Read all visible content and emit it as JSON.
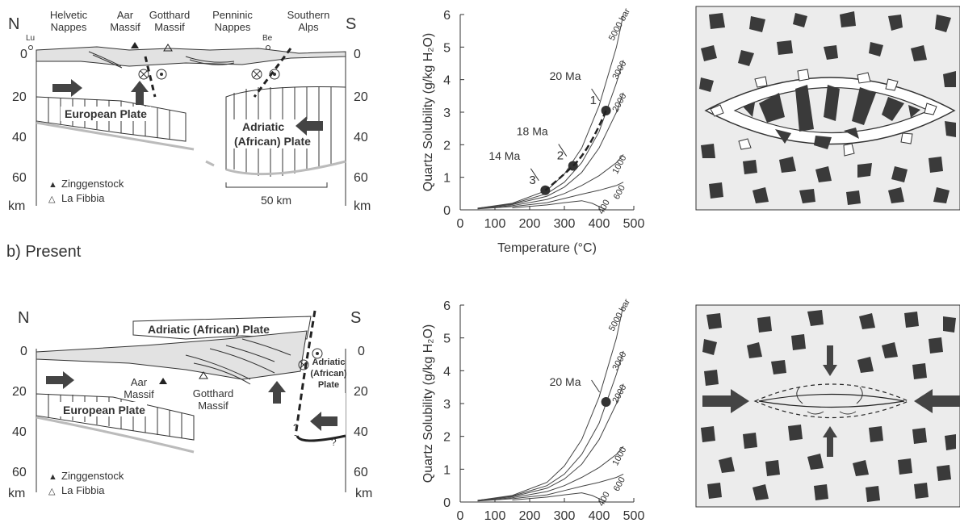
{
  "section_b_title": "b) Present",
  "colors": {
    "plate_fill": "#e6e6e6",
    "ink": "#333333",
    "grain": "#3a3a3a",
    "moho": "#b8b8b8",
    "box_fill": "#ececec"
  },
  "panel_a_section": {
    "north": "N",
    "south": "S",
    "units": [
      "Helvetic",
      "Nappes",
      "Aar",
      "Massif",
      "Gotthard",
      "Massif",
      "Penninic",
      "Nappes",
      "Southern",
      "Alps"
    ],
    "towns": [
      "Lu",
      "Be"
    ],
    "depth_ticks": [
      "0",
      "20",
      "40",
      "60",
      "km"
    ],
    "european_plate": "European Plate",
    "adriatic_plate": [
      "Adriatic",
      "(African) Plate"
    ],
    "legend": [
      "Zinggenstock",
      "La Fibbia"
    ],
    "legend_symbols": [
      "▲",
      "△"
    ],
    "scale_bar": "50 km"
  },
  "panel_b_section": {
    "north": "N",
    "south": "S",
    "depth_ticks": [
      "0",
      "20",
      "40",
      "60",
      "km"
    ],
    "adriatic_plate_top": "Adriatic (African) Plate",
    "adriatic_plate_side": [
      "Adriatic",
      "(African)",
      "Plate"
    ],
    "aar": [
      "Aar",
      "Massif"
    ],
    "gotthard": [
      "Gotthard",
      "Massif"
    ],
    "european_plate": "European Plate",
    "legend": [
      "Zinggenstock",
      "La Fibbia"
    ],
    "legend_symbols": [
      "▲",
      "△"
    ],
    "question": "?"
  },
  "chart_data": [
    {
      "type": "line",
      "xlabel": "Temperature (°C)",
      "ylabel": "Quartz Solubility (g/kg H₂O)",
      "xlim": [
        0,
        500
      ],
      "ylim": [
        0,
        6
      ],
      "xticks": [
        "0",
        "100",
        "200",
        "300",
        "400",
        "500"
      ],
      "yticks": [
        "0",
        "1",
        "2",
        "3",
        "4",
        "5",
        "6"
      ],
      "series": [
        {
          "name": "5000 bar",
          "points": [
            [
              50,
              0.05
            ],
            [
              150,
              0.2
            ],
            [
              250,
              0.6
            ],
            [
              300,
              1.1
            ],
            [
              350,
              1.9
            ],
            [
              400,
              3.2
            ],
            [
              450,
              5.0
            ],
            [
              470,
              6.0
            ]
          ]
        },
        {
          "name": "3000",
          "points": [
            [
              50,
              0.05
            ],
            [
              150,
              0.18
            ],
            [
              250,
              0.5
            ],
            [
              300,
              0.85
            ],
            [
              350,
              1.45
            ],
            [
              400,
              2.4
            ],
            [
              450,
              3.9
            ],
            [
              470,
              4.6
            ]
          ]
        },
        {
          "name": "2000",
          "points": [
            [
              50,
              0.05
            ],
            [
              150,
              0.16
            ],
            [
              250,
              0.42
            ],
            [
              300,
              0.7
            ],
            [
              350,
              1.15
            ],
            [
              400,
              1.9
            ],
            [
              450,
              3.0
            ],
            [
              470,
              3.6
            ]
          ]
        },
        {
          "name": "1000",
          "points": [
            [
              50,
              0.04
            ],
            [
              150,
              0.13
            ],
            [
              250,
              0.32
            ],
            [
              300,
              0.5
            ],
            [
              350,
              0.75
            ],
            [
              400,
              1.05
            ],
            [
              450,
              1.45
            ],
            [
              470,
              1.7
            ]
          ]
        },
        {
          "name": "600",
          "points": [
            [
              50,
              0.03
            ],
            [
              150,
              0.1
            ],
            [
              250,
              0.22
            ],
            [
              300,
              0.35
            ],
            [
              350,
              0.48
            ],
            [
              400,
              0.6
            ],
            [
              450,
              0.75
            ],
            [
              470,
              0.85
            ]
          ]
        },
        {
          "name": "400",
          "points": [
            [
              150,
              0.06
            ],
            [
              250,
              0.15
            ],
            [
              300,
              0.22
            ],
            [
              350,
              0.28
            ],
            [
              380,
              0.2
            ],
            [
              400,
              0.1
            ],
            [
              420,
              0.0
            ]
          ]
        }
      ],
      "points": [
        {
          "label": "1",
          "age": "20 Ma",
          "x": 420,
          "y": 3.05
        },
        {
          "label": "2",
          "age": "18 Ma",
          "x": 325,
          "y": 1.35
        },
        {
          "label": "3",
          "age": "14 Ma",
          "x": 245,
          "y": 0.6
        }
      ]
    },
    {
      "type": "line",
      "xlabel": "",
      "ylabel": "Quartz Solubility (g/kg H₂O)",
      "xlim": [
        0,
        500
      ],
      "ylim": [
        0,
        6
      ],
      "xticks": [
        "0",
        "100",
        "200",
        "300",
        "400",
        "500"
      ],
      "yticks": [
        "0",
        "1",
        "2",
        "3",
        "4",
        "5",
        "6"
      ],
      "series_labels": [
        "5000 bar",
        "3000",
        "2000",
        "1000",
        "600",
        "400"
      ],
      "points": [
        {
          "age": "20 Ma",
          "x": 420,
          "y": 3.05
        }
      ]
    }
  ]
}
